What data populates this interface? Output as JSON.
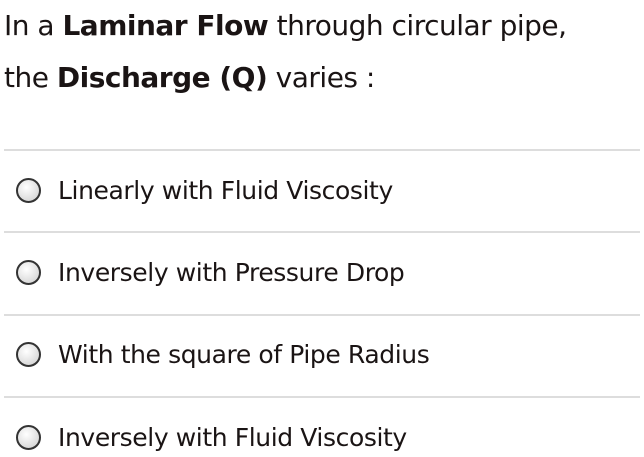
{
  "question": {
    "part1": "In a ",
    "bold1": "Laminar Flow",
    "part2": " through circular pipe,",
    "part3": "the ",
    "bold2": "Discharge (Q)",
    "part4": " varies :"
  },
  "options": [
    {
      "label": "Linearly with Fluid Viscosity",
      "selected": false
    },
    {
      "label": "Inversely with Pressure Drop",
      "selected": false
    },
    {
      "label": "With the square of Pipe Radius",
      "selected": false
    },
    {
      "label": "Inversely with Fluid Viscosity",
      "selected": false
    }
  ]
}
